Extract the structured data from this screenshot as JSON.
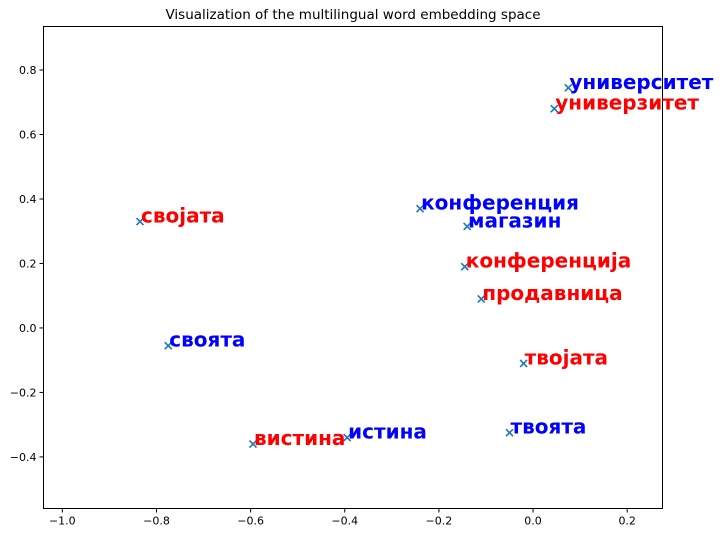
{
  "chart_data": {
    "type": "scatter",
    "title": "Visualization of the multilingual word embedding space",
    "xlabel": "",
    "ylabel": "",
    "xlim": [
      -1.04,
      0.275
    ],
    "ylim": [
      -0.56,
      0.935
    ],
    "xticks": [
      -1.0,
      -0.8,
      -0.6,
      -0.4,
      -0.2,
      0.0,
      0.2
    ],
    "xtick_labels": [
      "−1.0",
      "−0.8",
      "−0.6",
      "−0.4",
      "−0.2",
      "0.0",
      "0.2"
    ],
    "yticks": [
      -0.4,
      -0.2,
      0.0,
      0.2,
      0.4,
      0.6,
      0.8
    ],
    "ytick_labels": [
      "−0.4",
      "−0.2",
      "0.0",
      "0.2",
      "0.4",
      "0.6",
      "0.8"
    ],
    "grid": false,
    "marker": "x",
    "marker_color": "#1f77b4",
    "colors": {
      "blue": "#0000ff",
      "red": "#ff0000"
    },
    "points": [
      {
        "x": 0.075,
        "y": 0.745,
        "label": "университет",
        "color": "blue"
      },
      {
        "x": 0.045,
        "y": 0.68,
        "label": "универзитет",
        "color": "red"
      },
      {
        "x": -0.835,
        "y": 0.33,
        "label": "својата",
        "color": "red"
      },
      {
        "x": -0.24,
        "y": 0.37,
        "label": "конференция",
        "color": "blue"
      },
      {
        "x": -0.14,
        "y": 0.315,
        "label": "магазин",
        "color": "blue"
      },
      {
        "x": -0.145,
        "y": 0.19,
        "label": "конференција",
        "color": "red"
      },
      {
        "x": -0.11,
        "y": 0.09,
        "label": "продавница",
        "color": "red"
      },
      {
        "x": -0.775,
        "y": -0.055,
        "label": "своята",
        "color": "blue"
      },
      {
        "x": -0.02,
        "y": -0.11,
        "label": "твојата",
        "color": "red"
      },
      {
        "x": -0.595,
        "y": -0.36,
        "label": "вистина",
        "color": "red"
      },
      {
        "x": -0.395,
        "y": -0.34,
        "label": "истина",
        "color": "blue"
      },
      {
        "x": -0.05,
        "y": -0.325,
        "label": "твоята",
        "color": "blue"
      }
    ]
  }
}
